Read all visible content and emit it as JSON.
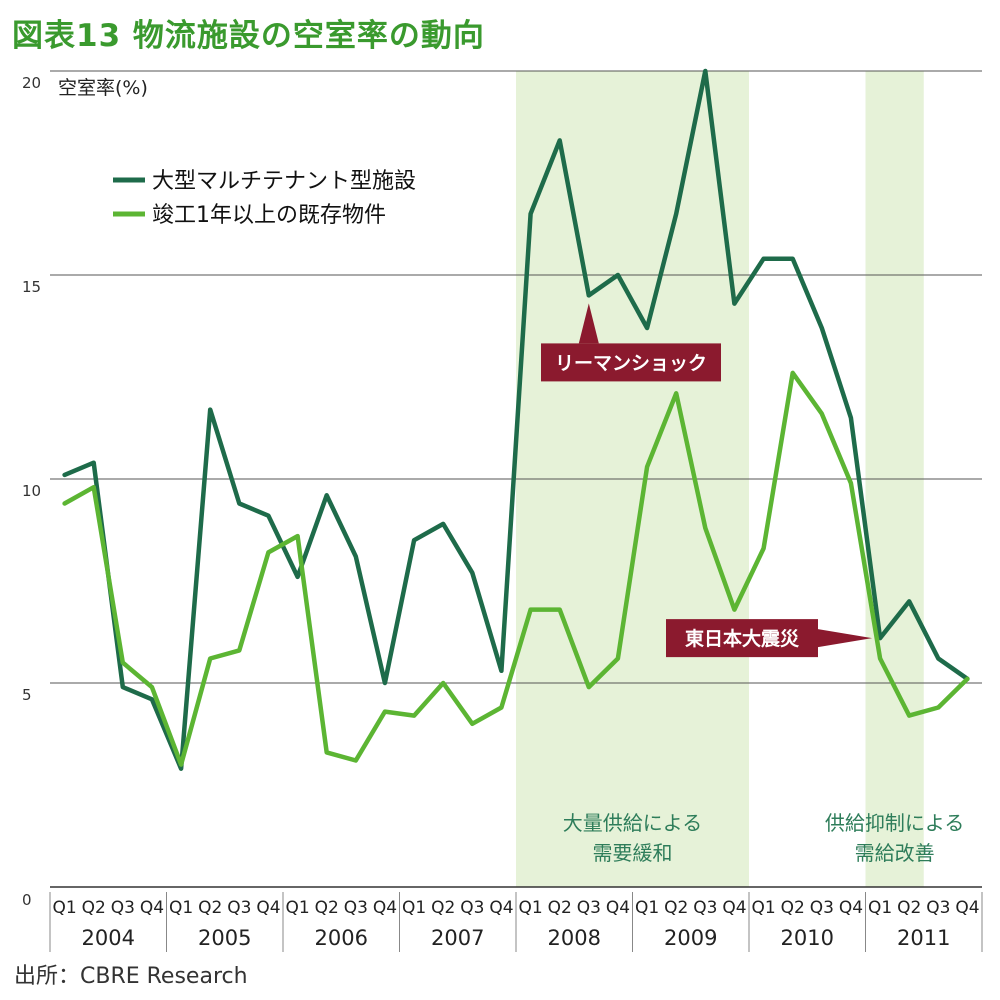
{
  "title": "図表13 物流施設の空室率の動向",
  "source": "出所：CBRE Research",
  "chart_data": {
    "type": "line",
    "ylabel": "空室率(%)",
    "ylim": [
      0,
      20
    ],
    "yticks": [
      0,
      5,
      10,
      15,
      20
    ],
    "quarters": [
      "Q1",
      "Q2",
      "Q3",
      "Q4"
    ],
    "years": [
      "2004",
      "2005",
      "2006",
      "2007",
      "2008",
      "2009",
      "2010",
      "2011"
    ],
    "grid": true,
    "legend_position": "top-left",
    "series": [
      {
        "name": "大型マルチテナント型施設",
        "color": "#1e6b4a",
        "values": [
          10.1,
          10.4,
          4.9,
          4.6,
          2.9,
          11.7,
          9.4,
          9.1,
          7.6,
          9.6,
          8.1,
          5.0,
          8.5,
          8.9,
          7.7,
          5.3,
          16.5,
          18.3,
          14.5,
          15.0,
          13.7,
          16.5,
          20.0,
          14.3,
          15.4,
          15.4,
          13.7,
          11.5,
          6.1,
          7.0,
          5.6,
          5.1
        ]
      },
      {
        "name": "竣工1年以上の既存物件",
        "color": "#5cb533",
        "values": [
          9.4,
          9.8,
          5.5,
          4.9,
          3.0,
          5.6,
          5.8,
          8.2,
          8.6,
          3.3,
          3.1,
          4.3,
          4.2,
          5.0,
          4.0,
          4.4,
          6.8,
          6.8,
          4.9,
          5.6,
          10.3,
          12.1,
          8.8,
          6.8,
          8.3,
          12.6,
          11.6,
          9.9,
          5.6,
          4.2,
          4.4,
          5.1
        ]
      }
    ],
    "shaded_periods": [
      {
        "start_index": 16,
        "end_index": 24,
        "label_lines": [
          "大量供給による",
          "需要緩和"
        ]
      },
      {
        "start_index": 28,
        "end_index": 30,
        "label_lines": [
          "供給抑制による",
          "需給改善"
        ]
      }
    ],
    "annotations": [
      {
        "text": "リーマンショック",
        "index": 18,
        "value": 14.5,
        "color": "#8b1a2e"
      },
      {
        "text": "東日本大震災",
        "index": 28,
        "value": 6.1,
        "color": "#8b1a2e"
      }
    ]
  }
}
